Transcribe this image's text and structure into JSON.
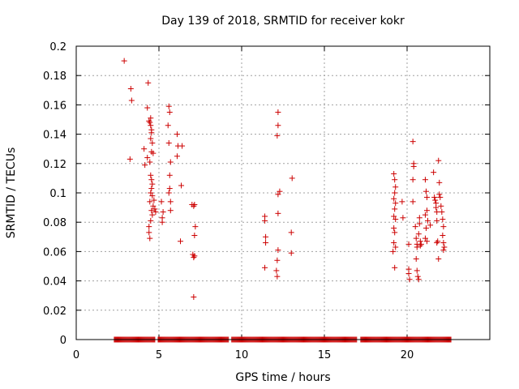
{
  "chart_data": {
    "type": "scatter",
    "title": "Day 139 of 2018, SRMTID for receiver kokr",
    "xlabel": "GPS time / hours",
    "ylabel": "SRMTID / TECUs",
    "xlim": [
      0,
      25
    ],
    "ylim": [
      0,
      0.2
    ],
    "x_ticks": [
      0,
      5,
      10,
      15,
      20
    ],
    "x_tick_labels": [
      "0",
      "5",
      "10",
      "15",
      "20"
    ],
    "y_ticks": [
      0,
      0.02,
      0.04,
      0.06,
      0.08,
      0.1,
      0.12,
      0.14,
      0.16,
      0.18,
      0.2
    ],
    "y_tick_labels": [
      "0",
      "0.02",
      "0.04",
      "0.06",
      "0.08",
      "0.1",
      "0.12",
      "0.14",
      "0.16",
      "0.18",
      "0.2"
    ],
    "grid": true,
    "marker": "+",
    "color": "#cc0000",
    "zero_band_x_range": [
      2.3,
      22.7
    ],
    "zero_band_gaps": [
      [
        4.75,
        4.9
      ],
      [
        9.2,
        9.35
      ],
      [
        17.0,
        17.2
      ]
    ],
    "points": [
      [
        2.9,
        0.19
      ],
      [
        3.3,
        0.171
      ],
      [
        3.35,
        0.163
      ],
      [
        3.25,
        0.123
      ],
      [
        4.1,
        0.13
      ],
      [
        4.15,
        0.119
      ],
      [
        4.3,
        0.158
      ],
      [
        4.3,
        0.124
      ],
      [
        4.35,
        0.175
      ],
      [
        4.4,
        0.149
      ],
      [
        4.45,
        0.148
      ],
      [
        4.5,
        0.151
      ],
      [
        4.5,
        0.146
      ],
      [
        4.55,
        0.143
      ],
      [
        4.55,
        0.141
      ],
      [
        4.5,
        0.137
      ],
      [
        4.45,
        0.121
      ],
      [
        4.55,
        0.128
      ],
      [
        4.6,
        0.134
      ],
      [
        4.65,
        0.127
      ],
      [
        4.5,
        0.112
      ],
      [
        4.55,
        0.109
      ],
      [
        4.6,
        0.106
      ],
      [
        4.55,
        0.103
      ],
      [
        4.5,
        0.1
      ],
      [
        4.45,
        0.094
      ],
      [
        4.6,
        0.098
      ],
      [
        4.65,
        0.091
      ],
      [
        4.55,
        0.088
      ],
      [
        4.6,
        0.085
      ],
      [
        4.5,
        0.081
      ],
      [
        4.4,
        0.077
      ],
      [
        4.4,
        0.073
      ],
      [
        4.45,
        0.069
      ],
      [
        4.7,
        0.095
      ],
      [
        4.75,
        0.089
      ],
      [
        4.8,
        0.087
      ],
      [
        5.15,
        0.094
      ],
      [
        5.25,
        0.087
      ],
      [
        5.2,
        0.083
      ],
      [
        5.2,
        0.08
      ],
      [
        5.6,
        0.159
      ],
      [
        5.65,
        0.155
      ],
      [
        5.55,
        0.146
      ],
      [
        5.6,
        0.134
      ],
      [
        5.7,
        0.121
      ],
      [
        5.65,
        0.112
      ],
      [
        5.65,
        0.103
      ],
      [
        5.6,
        0.1
      ],
      [
        5.7,
        0.094
      ],
      [
        5.7,
        0.088
      ],
      [
        6.1,
        0.14
      ],
      [
        6.15,
        0.132
      ],
      [
        6.4,
        0.132
      ],
      [
        6.1,
        0.125
      ],
      [
        6.35,
        0.105
      ],
      [
        6.3,
        0.067
      ],
      [
        7.0,
        0.092
      ],
      [
        7.1,
        0.091
      ],
      [
        7.15,
        0.092
      ],
      [
        7.2,
        0.077
      ],
      [
        7.15,
        0.071
      ],
      [
        7.05,
        0.058
      ],
      [
        7.1,
        0.056
      ],
      [
        7.15,
        0.057
      ],
      [
        7.1,
        0.029
      ],
      [
        11.4,
        0.084
      ],
      [
        11.4,
        0.081
      ],
      [
        11.45,
        0.07
      ],
      [
        11.45,
        0.066
      ],
      [
        11.4,
        0.049
      ],
      [
        12.2,
        0.155
      ],
      [
        12.2,
        0.146
      ],
      [
        12.15,
        0.139
      ],
      [
        12.3,
        0.101
      ],
      [
        12.2,
        0.099
      ],
      [
        12.2,
        0.086
      ],
      [
        12.2,
        0.061
      ],
      [
        12.15,
        0.054
      ],
      [
        12.1,
        0.047
      ],
      [
        12.15,
        0.043
      ],
      [
        13.05,
        0.11
      ],
      [
        13.0,
        0.073
      ],
      [
        13.0,
        0.059
      ],
      [
        19.2,
        0.113
      ],
      [
        19.25,
        0.109
      ],
      [
        19.3,
        0.104
      ],
      [
        19.25,
        0.1
      ],
      [
        19.2,
        0.096
      ],
      [
        19.3,
        0.093
      ],
      [
        19.25,
        0.089
      ],
      [
        19.2,
        0.084
      ],
      [
        19.3,
        0.082
      ],
      [
        19.2,
        0.076
      ],
      [
        19.25,
        0.073
      ],
      [
        19.2,
        0.066
      ],
      [
        19.3,
        0.063
      ],
      [
        19.15,
        0.06
      ],
      [
        19.25,
        0.049
      ],
      [
        19.7,
        0.094
      ],
      [
        19.75,
        0.083
      ],
      [
        20.1,
        0.065
      ],
      [
        20.1,
        0.048
      ],
      [
        20.1,
        0.045
      ],
      [
        20.15,
        0.041
      ],
      [
        20.35,
        0.135
      ],
      [
        20.4,
        0.12
      ],
      [
        20.4,
        0.118
      ],
      [
        20.35,
        0.109
      ],
      [
        20.35,
        0.094
      ],
      [
        20.5,
        0.077
      ],
      [
        20.55,
        0.069
      ],
      [
        20.6,
        0.065
      ],
      [
        20.6,
        0.063
      ],
      [
        20.55,
        0.055
      ],
      [
        20.6,
        0.047
      ],
      [
        20.65,
        0.043
      ],
      [
        20.7,
        0.041
      ],
      [
        20.75,
        0.083
      ],
      [
        20.75,
        0.079
      ],
      [
        20.8,
        0.067
      ],
      [
        20.8,
        0.064
      ],
      [
        20.85,
        0.065
      ],
      [
        20.7,
        0.072
      ],
      [
        21.1,
        0.109
      ],
      [
        21.15,
        0.101
      ],
      [
        21.2,
        0.097
      ],
      [
        21.2,
        0.088
      ],
      [
        21.1,
        0.085
      ],
      [
        21.25,
        0.081
      ],
      [
        21.15,
        0.076
      ],
      [
        21.1,
        0.069
      ],
      [
        21.2,
        0.067
      ],
      [
        21.4,
        0.078
      ],
      [
        21.6,
        0.114
      ],
      [
        21.65,
        0.097
      ],
      [
        21.7,
        0.095
      ],
      [
        21.75,
        0.093
      ],
      [
        21.75,
        0.09
      ],
      [
        21.8,
        0.087
      ],
      [
        21.8,
        0.081
      ],
      [
        21.85,
        0.067
      ],
      [
        21.9,
        0.055
      ],
      [
        21.9,
        0.122
      ],
      [
        21.95,
        0.107
      ],
      [
        22.0,
        0.097
      ],
      [
        21.95,
        0.099
      ],
      [
        22.05,
        0.091
      ],
      [
        22.1,
        0.087
      ],
      [
        22.15,
        0.082
      ],
      [
        22.2,
        0.077
      ],
      [
        22.15,
        0.071
      ],
      [
        22.2,
        0.066
      ],
      [
        22.25,
        0.063
      ],
      [
        22.2,
        0.061
      ],
      [
        21.8,
        0.066
      ]
    ]
  }
}
